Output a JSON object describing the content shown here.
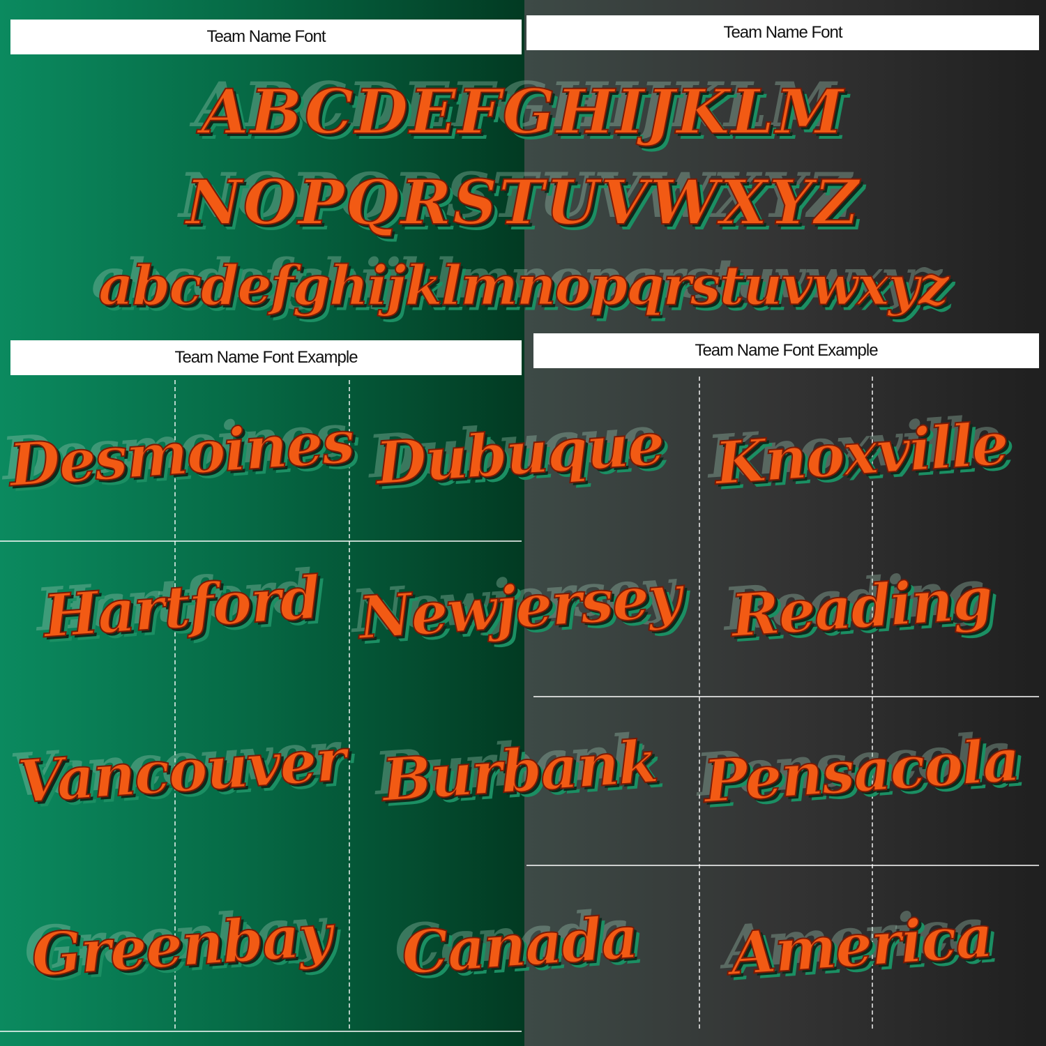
{
  "headers": [
    "Team Name Font",
    "Team Name Font",
    "Team Name Font Example",
    "Team Name Font Example"
  ],
  "alphabet_rows": [
    "ABCDEFGHIJKLM",
    "NOPQRSTUVWXYZ",
    "abcdefghijklmnopqrstuvwxyz"
  ],
  "samples": [
    "Desmoines",
    "Dubuque",
    "Knoxville",
    "Hartford",
    "Newjersey",
    "Reading",
    "Vancouver",
    "Burbank",
    "Pensacola",
    "Greenbay",
    "Canada",
    "America"
  ]
}
